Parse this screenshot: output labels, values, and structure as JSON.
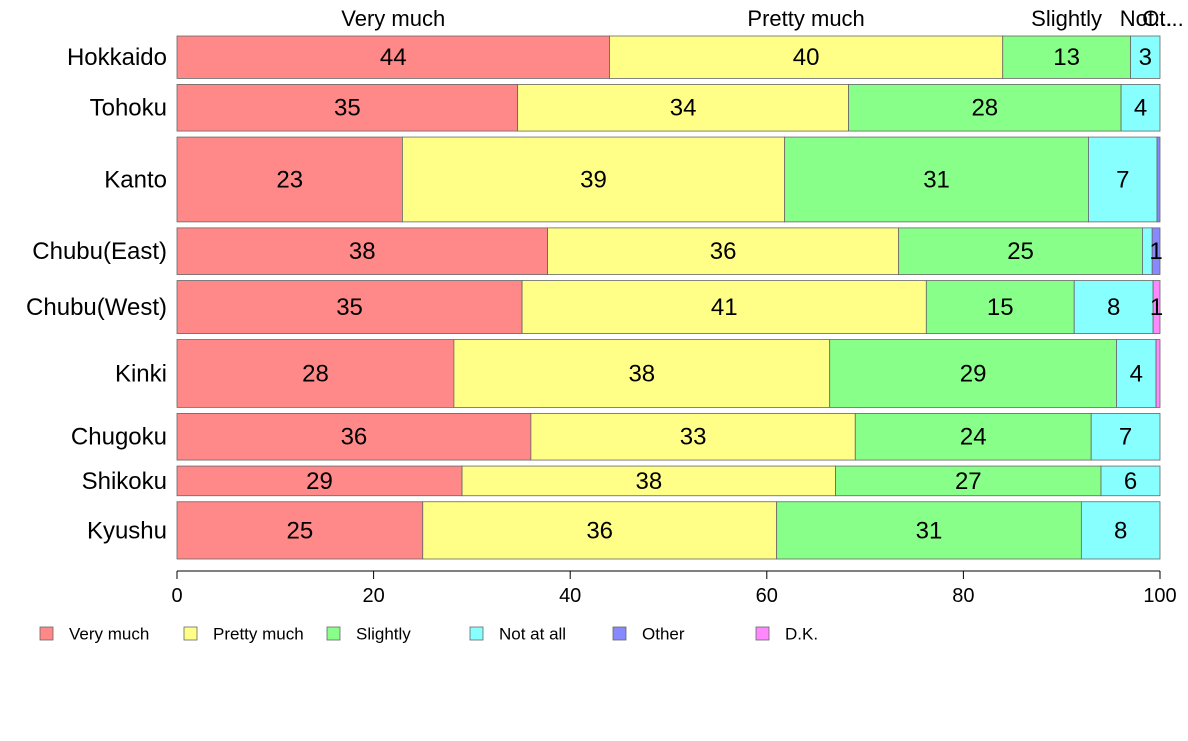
{
  "chart_data": {
    "type": "bar",
    "orientation": "horizontal",
    "stacked": true,
    "variable_width": true,
    "categories": [
      "Hokkaido",
      "Tohoku",
      "Kanto",
      "Chubu(East)",
      "Chubu(West)",
      "Kinki",
      "Chugoku",
      "Shikoku",
      "Kyushu"
    ],
    "relative_sample_size": [
      1.0,
      1.1,
      2.0,
      1.1,
      1.25,
      1.6,
      1.1,
      0.7,
      1.35
    ],
    "series": [
      {
        "name": "Very much",
        "color": "#ff8888",
        "values": [
          44,
          35,
          23,
          38,
          35,
          28,
          36,
          29,
          25
        ]
      },
      {
        "name": "Pretty much",
        "color": "#ffff88",
        "values": [
          40,
          34,
          39,
          36,
          41,
          38,
          33,
          38,
          36
        ]
      },
      {
        "name": "Slightly",
        "color": "#88ff88",
        "values": [
          13,
          28,
          31,
          25,
          15,
          29,
          24,
          27,
          31
        ]
      },
      {
        "name": "Not at all",
        "color": "#88ffff",
        "values": [
          3,
          4,
          7,
          1,
          8,
          4,
          7,
          6,
          8
        ]
      },
      {
        "name": "Other",
        "color": "#8888ff",
        "values": [
          0,
          0,
          0.3,
          0.8,
          0,
          0,
          0,
          0,
          0
        ]
      },
      {
        "name": "D.K.",
        "color": "#ff88ff",
        "values": [
          0,
          0,
          0,
          0,
          0.7,
          0.4,
          0,
          0,
          0
        ]
      }
    ],
    "value_labels": [
      [
        "44",
        "40",
        "13",
        "3",
        "",
        ""
      ],
      [
        "35",
        "34",
        "28",
        "4",
        "",
        ""
      ],
      [
        "23",
        "39",
        "31",
        "7",
        "",
        ""
      ],
      [
        "38",
        "36",
        "25",
        "",
        "1",
        ""
      ],
      [
        "35",
        "41",
        "15",
        "8",
        "",
        "1"
      ],
      [
        "28",
        "38",
        "29",
        "4",
        "",
        ""
      ],
      [
        "36",
        "33",
        "24",
        "7",
        "",
        ""
      ],
      [
        "29",
        "38",
        "27",
        "6",
        "",
        ""
      ],
      [
        "25",
        "36",
        "31",
        "8",
        "",
        ""
      ]
    ],
    "top_labels": [
      "Very much",
      "Pretty much",
      "Slightly",
      "Not...",
      "Ot..."
    ],
    "x_ticks": [
      0,
      20,
      40,
      60,
      80,
      100
    ],
    "xlim": [
      0,
      100
    ],
    "legend": {
      "position": "bottom",
      "entries": [
        "Very much",
        "Pretty much",
        "Slightly",
        "Not at all",
        "Other",
        "D.K."
      ]
    },
    "grid": false,
    "title": "",
    "xlabel": "",
    "ylabel": ""
  }
}
